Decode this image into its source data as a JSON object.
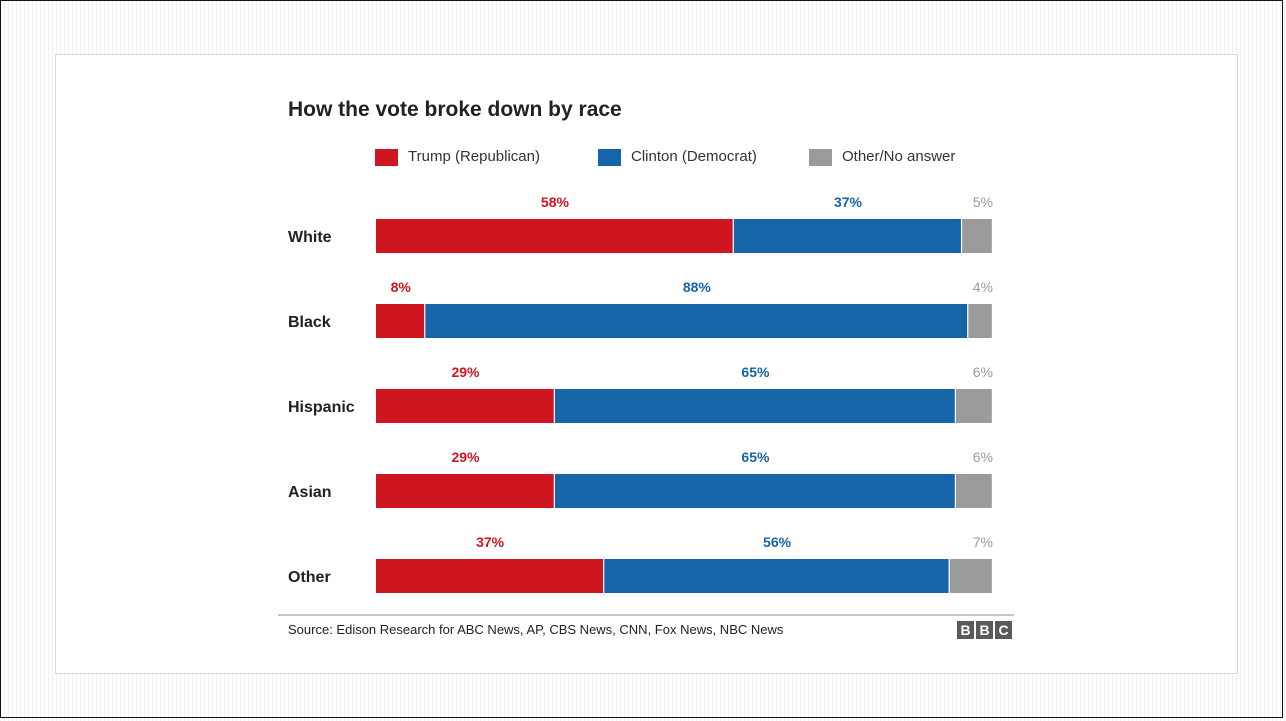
{
  "colors": {
    "trump": "#cd161f",
    "clinton": "#1565a8",
    "other": "#9b9b9b"
  },
  "chart_data": {
    "type": "bar",
    "orientation": "horizontal",
    "stacked": true,
    "title": "How the vote broke down by race",
    "categories": [
      "White",
      "Black",
      "Hispanic",
      "Asian",
      "Other"
    ],
    "series": [
      {
        "name": "Trump (Republican)",
        "values": [
          58,
          8,
          29,
          29,
          37
        ],
        "labels": [
          "58%",
          "8%",
          "29%",
          "29%",
          "37%"
        ]
      },
      {
        "name": "Clinton (Democrat)",
        "values": [
          37,
          88,
          65,
          65,
          56
        ],
        "labels": [
          "37%",
          "88%",
          "65%",
          "65%",
          "56%"
        ]
      },
      {
        "name": "Other/No answer",
        "values": [
          5,
          4,
          6,
          6,
          7
        ],
        "labels": [
          "5%",
          "4%",
          "6%",
          "6%",
          "7%"
        ]
      }
    ],
    "xlim": [
      0,
      100
    ],
    "legend": "top",
    "grid": false
  },
  "footer": {
    "source": "Source: Edison Research for ABC News, AP, CBS News, CNN, Fox News, NBC News",
    "logo_letters": [
      "B",
      "B",
      "C"
    ]
  }
}
